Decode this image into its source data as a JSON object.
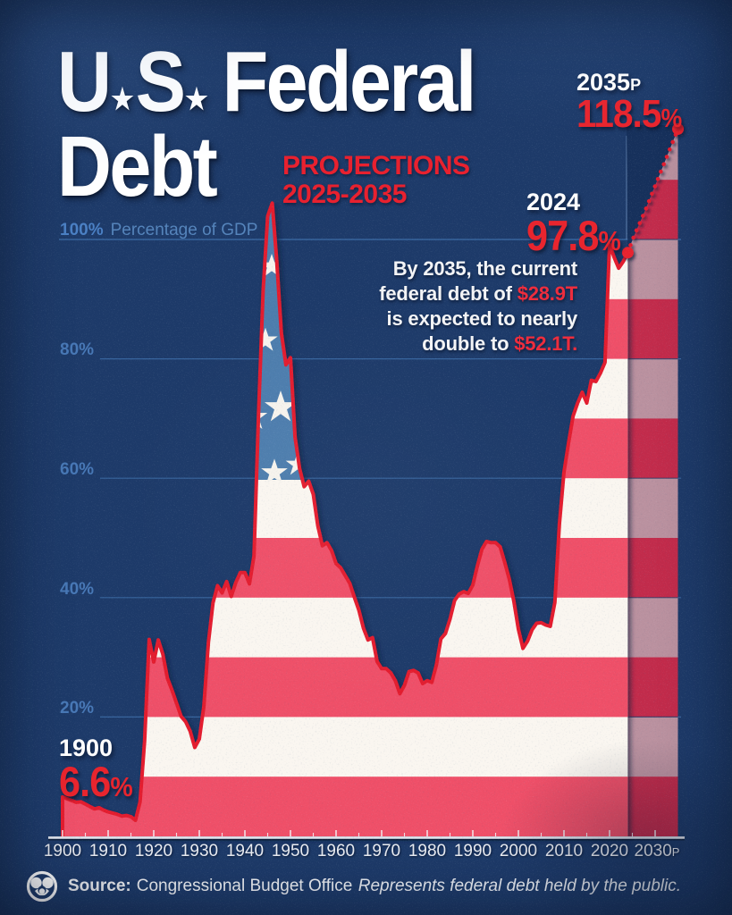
{
  "title": {
    "us_u": "U",
    "us_s": "S",
    "word2": "Federal",
    "line2": "Debt",
    "star": "★"
  },
  "subtitle": {
    "line1": "PROJECTIONS",
    "line2": "2025-2035"
  },
  "y_axis": {
    "top_value": "100%",
    "top_caption": "Percentage of GDP",
    "labels": [
      "80%",
      "60%",
      "40%",
      "20%"
    ]
  },
  "x_axis": {
    "labels": [
      "1900",
      "1910",
      "1920",
      "1930",
      "1940",
      "1950",
      "1960",
      "1970",
      "1980",
      "1990",
      "2000",
      "2010",
      "2020"
    ],
    "proj_label": {
      "year": "2030",
      "suffix": "P"
    }
  },
  "annotations": {
    "start": {
      "year": "1900",
      "value": "6.6",
      "unit": "%"
    },
    "current": {
      "year": "2024",
      "value": "97.8",
      "unit": "%"
    },
    "projected": {
      "year": "2035",
      "suffix": "P",
      "value": "118.5",
      "unit": "%"
    }
  },
  "callout": {
    "line1": "By 2035, the current",
    "line2_pre": "federal debt of ",
    "line2_red": "$28.9T",
    "line3": "is expected to nearly",
    "line4_pre": "double to ",
    "line4_red": "$52.1T."
  },
  "footer": {
    "source_label": "Source:",
    "source_text": "Congressional Budget Office",
    "note": "Represents federal debt held by the public."
  },
  "colors": {
    "background": "#1d3a69",
    "stripe_red": "#ef4f68",
    "stripe_white": "#faf6f0",
    "canton_blue": "#4e7dad",
    "star_white": "#f6f3ed",
    "proj_red": "#c22b4b",
    "proj_mauve": "#ba919f",
    "proj_shade": "#16305a",
    "line_red": "#e31c2d",
    "dot_red": "#e8202e",
    "accent_red": "#e8252e",
    "grid_blue": "#3c6ca7",
    "leader_blue": "#6b8cb8",
    "axis_white": "#e6e9f0"
  },
  "chart_data": {
    "type": "area",
    "title": "U.S. Federal Debt, Projections 2025-2035",
    "ylabel": "Percentage of GDP",
    "ylim": [
      0,
      120
    ],
    "gridlines_pct": [
      20,
      40,
      60,
      80,
      100
    ],
    "x_range_years": [
      1900,
      2035
    ],
    "historical": {
      "start_year": 1900,
      "end_year": 2024,
      "values": [
        6.6,
        6.3,
        6.0,
        5.7,
        5.8,
        5.4,
        5.0,
        4.6,
        4.8,
        4.4,
        4.1,
        3.9,
        3.7,
        3.4,
        3.5,
        3.3,
        2.7,
        5.8,
        16.0,
        33.0,
        29.2,
        32.9,
        30.5,
        26.5,
        24.5,
        22.3,
        20.1,
        19.2,
        17.6,
        14.9,
        16.3,
        21.8,
        32.5,
        39.1,
        42.0,
        40.8,
        42.7,
        40.2,
        42.5,
        44.2,
        44.2,
        42.3,
        47.0,
        70.9,
        91.4,
        103.9,
        106.1,
        96.2,
        84.3,
        79.0,
        80.2,
        66.9,
        61.6,
        58.6,
        59.5,
        57.3,
        52.0,
        48.7,
        49.2,
        47.9,
        45.7,
        45.0,
        43.7,
        42.4,
        40.1,
        37.9,
        34.9,
        32.9,
        33.3,
        29.3,
        28.1,
        28.1,
        27.4,
        26.1,
        23.9,
        25.3,
        27.6,
        27.8,
        27.4,
        25.6,
        26.1,
        25.8,
        28.7,
        33.1,
        34.0,
        36.4,
        39.5,
        40.6,
        41.0,
        40.7,
        42.1,
        45.3,
        48.1,
        49.4,
        49.2,
        49.2,
        48.5,
        45.9,
        43.1,
        39.4,
        34.7,
        31.5,
        32.7,
        34.6,
        35.7,
        35.8,
        35.4,
        35.2,
        39.2,
        52.3,
        61.0,
        65.9,
        70.4,
        72.6,
        74.4,
        72.6,
        76.4,
        76.2,
        77.6,
        79.4,
        99.2,
        97.0,
        95.2,
        96.3,
        97.8
      ]
    },
    "projection": {
      "start_year": 2024,
      "end_year": 2035,
      "values": [
        97.8,
        99.9,
        101.7,
        103.4,
        105.2,
        107.1,
        109.0,
        110.9,
        112.8,
        114.7,
        116.6,
        118.5
      ]
    },
    "key_points": {
      "year_1900": 6.6,
      "year_2024": 97.8,
      "year_2035": 118.5
    }
  }
}
